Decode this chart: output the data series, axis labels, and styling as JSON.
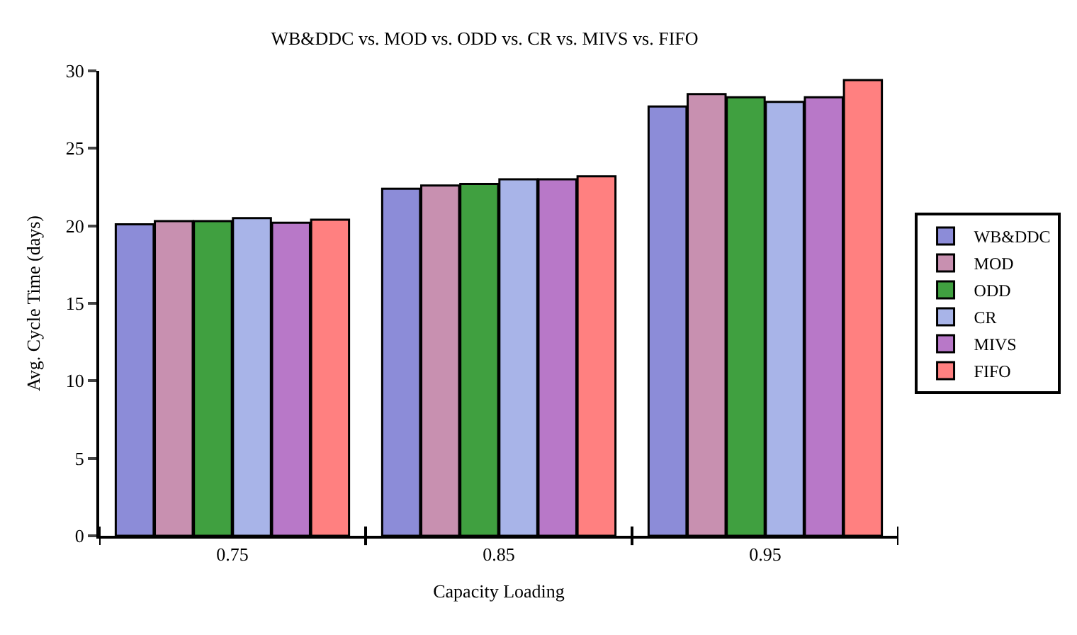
{
  "chart_data": {
    "type": "bar",
    "title": "WB&DDC vs. MOD vs. ODD vs. CR vs. MIVS vs. FIFO",
    "xlabel": "Capacity Loading",
    "ylabel": "Avg. Cycle Time (days)",
    "categories": [
      "0.75",
      "0.85",
      "0.95"
    ],
    "series": [
      {
        "name": "WB&DDC",
        "color": "#8c8cd8",
        "values": [
          20.1,
          22.4,
          27.7
        ]
      },
      {
        "name": "MOD",
        "color": "#c890b0",
        "values": [
          20.3,
          22.6,
          28.5
        ]
      },
      {
        "name": "ODD",
        "color": "#40a040",
        "values": [
          20.3,
          22.7,
          28.3
        ]
      },
      {
        "name": "CR",
        "color": "#a8b4e8",
        "values": [
          20.5,
          23.0,
          28.0
        ]
      },
      {
        "name": "MIVS",
        "color": "#b878c8",
        "values": [
          20.2,
          23.0,
          28.3
        ]
      },
      {
        "name": "FIFO",
        "color": "#ff8080",
        "values": [
          20.4,
          23.2,
          29.4
        ]
      }
    ],
    "ylim": [
      0,
      30
    ],
    "yticks": [
      0,
      5,
      10,
      15,
      20,
      25,
      30
    ],
    "legend": "right"
  }
}
